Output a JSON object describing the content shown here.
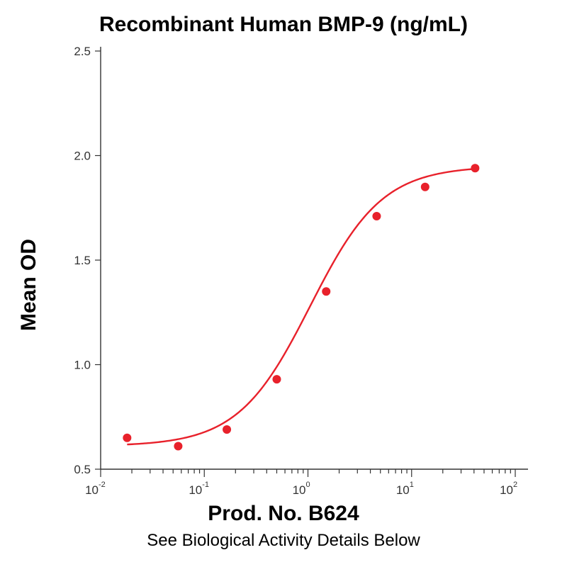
{
  "chart_data": {
    "type": "scatter",
    "title": "Recombinant Human BMP-9 (ng/mL)",
    "xlabel": "Prod. No. B624",
    "ylabel": "Mean OD",
    "subtitle": "See Biological Activity Details Below",
    "x_scale": "log",
    "xlim": [
      0.01,
      100
    ],
    "ylim": [
      0.5,
      2.5
    ],
    "x_ticks": [
      {
        "base": "10",
        "exp": "-2",
        "value": 0.01
      },
      {
        "base": "10",
        "exp": "-1",
        "value": 0.1
      },
      {
        "base": "10",
        "exp": "0",
        "value": 1
      },
      {
        "base": "10",
        "exp": "1",
        "value": 10
      },
      {
        "base": "10",
        "exp": "2",
        "value": 100
      }
    ],
    "y_ticks": [
      "0.5",
      "1.0",
      "1.5",
      "2.0",
      "2.5"
    ],
    "grid": false,
    "color": "#e8212b",
    "series": [
      {
        "x": [
          0.018,
          0.056,
          0.165,
          0.5,
          1.5,
          4.6,
          13.5,
          41
        ],
        "y": [
          0.65,
          0.61,
          0.69,
          0.93,
          1.35,
          1.71,
          1.85,
          1.94
        ]
      }
    ],
    "fit_curve": {
      "bottom": 0.61,
      "top": 1.95,
      "ec50": 1.05,
      "hill": 1.25,
      "x_range": [
        0.018,
        41
      ]
    }
  }
}
